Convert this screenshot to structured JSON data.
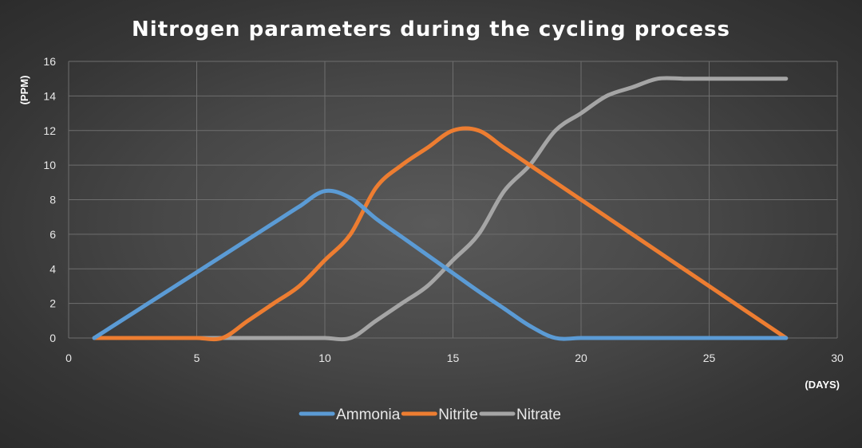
{
  "chart_data": {
    "type": "line",
    "title": "Nitrogen parameters during the cycling process",
    "xlabel": "(DAYS)",
    "ylabel": "(PPM)",
    "xlim": [
      0,
      30
    ],
    "ylim": [
      0,
      16
    ],
    "xticks": [
      0,
      5,
      10,
      15,
      20,
      25,
      30
    ],
    "yticks": [
      0,
      2,
      4,
      6,
      8,
      10,
      12,
      14,
      16
    ],
    "grid": true,
    "legend_position": "bottom",
    "series": [
      {
        "name": "Ammonia",
        "color": "#5b9bd5",
        "x": [
          1,
          2,
          3,
          4,
          5,
          6,
          7,
          8,
          9,
          10,
          11,
          12,
          13,
          14,
          15,
          16,
          17,
          18,
          19,
          20,
          21,
          22,
          23,
          24,
          25,
          26,
          27,
          28
        ],
        "y": [
          0,
          0.95,
          1.9,
          2.85,
          3.8,
          4.75,
          5.7,
          6.65,
          7.6,
          8.5,
          8.1,
          6.9,
          5.85,
          4.8,
          3.75,
          2.7,
          1.7,
          0.7,
          0,
          0,
          0,
          0,
          0,
          0,
          0,
          0,
          0,
          0
        ]
      },
      {
        "name": "Nitrite",
        "color": "#ed7d31",
        "x": [
          1,
          2,
          3,
          4,
          5,
          6,
          7,
          8,
          9,
          10,
          11,
          12,
          13,
          14,
          15,
          16,
          17,
          18,
          19,
          20,
          21,
          22,
          23,
          24,
          25,
          26,
          27,
          28
        ],
        "y": [
          0,
          0,
          0,
          0,
          0,
          0,
          1,
          2,
          3,
          4.5,
          6,
          8.7,
          10,
          11,
          12,
          12,
          11,
          10,
          9,
          8,
          7,
          6,
          5,
          4,
          3,
          2,
          1,
          0
        ]
      },
      {
        "name": "Nitrate",
        "color": "#a5a5a5",
        "x": [
          1,
          2,
          3,
          4,
          5,
          6,
          7,
          8,
          9,
          10,
          11,
          12,
          13,
          14,
          15,
          16,
          17,
          18,
          19,
          20,
          21,
          22,
          23,
          24,
          25,
          26,
          27,
          28
        ],
        "y": [
          0,
          0,
          0,
          0,
          0,
          0,
          0,
          0,
          0,
          0,
          0,
          1,
          2,
          3,
          4.5,
          6,
          8.5,
          10,
          12,
          13,
          14,
          14.5,
          15,
          15,
          15,
          15,
          15,
          15
        ]
      }
    ]
  }
}
